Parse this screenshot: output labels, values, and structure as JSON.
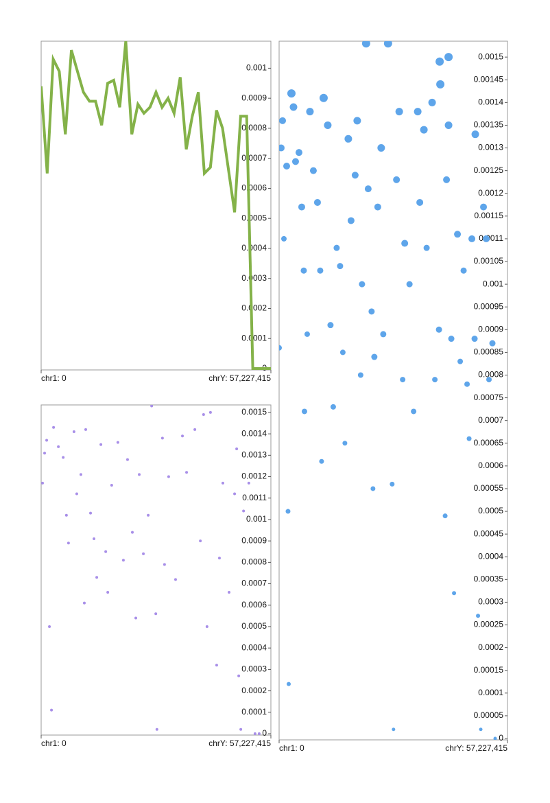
{
  "chart_data": [
    {
      "type": "line",
      "color": "#84b249",
      "values": [
        0.00094,
        0.00065,
        0.00103,
        0.00099,
        0.00078,
        0.00106,
        0.00099,
        0.00092,
        0.00089,
        0.00089,
        0.00081,
        0.00095,
        0.00096,
        0.00087,
        0.00109,
        0.00078,
        0.00088,
        0.00085,
        0.00087,
        0.00092,
        0.00087,
        0.0009,
        0.00085,
        0.00097,
        0.00073,
        0.00084,
        0.00092,
        0.00065,
        0.00067,
        0.00086,
        0.0008,
        0.00066,
        0.00052,
        0.00084,
        0.00084,
        0,
        0,
        0,
        0
      ],
      "xlim": [
        0,
        1
      ],
      "xticks": [
        {
          "value": 0,
          "label": "chr1: 0"
        },
        {
          "value": 1,
          "label": "chrY: 57,227,415"
        }
      ],
      "ylim": [
        0,
        0.00109
      ],
      "yticks": [
        0,
        0.0001,
        0.0002,
        0.0003,
        0.0004,
        0.0005,
        0.0006,
        0.0007,
        0.0008,
        0.0009,
        0.001
      ]
    },
    {
      "type": "scatter",
      "color": "#a88fe8",
      "x": [
        0.006,
        0.015,
        0.024,
        0.036,
        0.045,
        0.054,
        0.075,
        0.096,
        0.11,
        0.119,
        0.143,
        0.155,
        0.173,
        0.188,
        0.194,
        0.215,
        0.23,
        0.242,
        0.26,
        0.281,
        0.29,
        0.307,
        0.334,
        0.358,
        0.376,
        0.397,
        0.412,
        0.427,
        0.445,
        0.466,
        0.481,
        0.499,
        0.504,
        0.528,
        0.537,
        0.555,
        0.585,
        0.615,
        0.633,
        0.669,
        0.693,
        0.707,
        0.722,
        0.737,
        0.764,
        0.776,
        0.791,
        0.818,
        0.842,
        0.851,
        0.86,
        0.869,
        0.881,
        0.904,
        0.931,
        0.949
      ],
      "values": [
        0.00117,
        0.00131,
        0.00137,
        0.0005,
        0.00011,
        0.00143,
        0.00134,
        0.00129,
        0.00102,
        0.00089,
        0.00141,
        0.00112,
        0.00121,
        0.00061,
        0.00142,
        0.00103,
        0.00091,
        0.00073,
        0.00135,
        0.00085,
        0.00066,
        0.00116,
        0.00136,
        0.00081,
        0.00128,
        0.00094,
        0.00054,
        0.00121,
        0.00084,
        0.00102,
        0.00153,
        0.00056,
        2e-05,
        0.00138,
        0.00079,
        0.0012,
        0.00072,
        0.00139,
        0.00122,
        0.00142,
        0.0009,
        0.00149,
        0.0005,
        0.0015,
        0.00032,
        0.00082,
        0.00117,
        0.00066,
        0.00112,
        0.00133,
        0.00027,
        2e-05,
        0.00104,
        0.00117,
        0,
        0
      ],
      "xlim": [
        0,
        1
      ],
      "xticks": [
        {
          "value": 0,
          "label": "chr1: 0"
        },
        {
          "value": 1,
          "label": "chrY: 57,227,415"
        }
      ],
      "ylim": [
        0,
        0.001535
      ],
      "yticks": [
        0,
        0.0001,
        0.0002,
        0.0003,
        0.0004,
        0.0005,
        0.0006,
        0.0007,
        0.0008,
        0.0009,
        0.001,
        0.0011,
        0.0012,
        0.0013,
        0.0014,
        0.0015
      ]
    },
    {
      "type": "scatter",
      "color": "#5ea5ea",
      "x": [
        0,
        0.009,
        0.015,
        0.021,
        0.033,
        0.039,
        0.042,
        0.054,
        0.063,
        0.072,
        0.087,
        0.099,
        0.108,
        0.111,
        0.123,
        0.135,
        0.15,
        0.168,
        0.18,
        0.186,
        0.195,
        0.213,
        0.225,
        0.237,
        0.252,
        0.267,
        0.279,
        0.288,
        0.303,
        0.315,
        0.333,
        0.342,
        0.357,
        0.363,
        0.381,
        0.39,
        0.405,
        0.411,
        0.417,
        0.432,
        0.447,
        0.456,
        0.477,
        0.495,
        0.501,
        0.514,
        0.526,
        0.541,
        0.55,
        0.571,
        0.589,
        0.607,
        0.616,
        0.634,
        0.646,
        0.67,
        0.682,
        0.7,
        0.706,
        0.727,
        0.733,
        0.742,
        0.754,
        0.766,
        0.781,
        0.793,
        0.808,
        0.823,
        0.832,
        0.844,
        0.856,
        0.859,
        0.871,
        0.883,
        0.895,
        0.907,
        0.919,
        0.934,
        0.946,
        0.742,
        0.703
      ],
      "values": [
        0.00086,
        0.0013,
        0.00136,
        0.0011,
        0.00126,
        0.0005,
        0.00012,
        0.00142,
        0.00139,
        0.00127,
        0.00129,
        0.00117,
        0.00103,
        0.00072,
        0.00089,
        0.00138,
        0.00125,
        0.00118,
        0.00103,
        0.00061,
        0.00141,
        0.00135,
        0.00091,
        0.00073,
        0.00108,
        0.00104,
        0.00085,
        0.00065,
        0.00132,
        0.00114,
        0.00124,
        0.00136,
        0.0008,
        0.001,
        0.00153,
        0.00121,
        0.00094,
        0.00055,
        0.00084,
        0.00117,
        0.0013,
        0.00089,
        0.00153,
        0.00056,
        2e-05,
        0.00123,
        0.00138,
        0.00079,
        0.00109,
        0.001,
        0.00072,
        0.00138,
        0.00118,
        0.00134,
        0.00108,
        0.0014,
        0.00079,
        0.0009,
        0.00144,
        0.00049,
        0.00123,
        0.00135,
        0.00088,
        0.00032,
        0.00111,
        0.00083,
        0.00103,
        0.00078,
        0.00066,
        0.0011,
        0.00088,
        0.00133,
        0.00027,
        2e-05,
        0.00117,
        0.0011,
        0.00079,
        0.00087,
        0,
        0.0015,
        0.00149
      ],
      "sizes": [
        4,
        5,
        5,
        4,
        5,
        3.5,
        3,
        6,
        5.5,
        5,
        5,
        5,
        4.5,
        4,
        4,
        5.5,
        5,
        5,
        4.5,
        3.5,
        6,
        5.5,
        4.5,
        4,
        4.5,
        4.5,
        4,
        3.5,
        5.5,
        5,
        5,
        5.5,
        4,
        4.5,
        6,
        5,
        4.5,
        3.5,
        4.5,
        5,
        5.5,
        4.5,
        6,
        3.5,
        2.5,
        5,
        5.5,
        4,
        5,
        4.5,
        4,
        5.5,
        5,
        5.5,
        4.5,
        5.5,
        4,
        4.5,
        6,
        3.5,
        5,
        5.5,
        4.5,
        3,
        5,
        4,
        4.5,
        4,
        3.5,
        5,
        4.5,
        5.5,
        3,
        2.5,
        5,
        5,
        4,
        4.5,
        2.5,
        6,
        6
      ],
      "xlim": [
        0,
        1
      ],
      "xticks": [
        {
          "value": 0,
          "label": "chr1: 0"
        },
        {
          "value": 1,
          "label": "chrY: 57,227,415"
        }
      ],
      "ylim": [
        0,
        0.001535
      ],
      "yticks": [
        0,
        5e-05,
        0.0001,
        0.00015,
        0.0002,
        0.00025,
        0.0003,
        0.00035,
        0.0004,
        0.00045,
        0.0005,
        0.00055,
        0.0006,
        0.00065,
        0.0007,
        0.00075,
        0.0008,
        0.00085,
        0.0009,
        0.00095,
        0.001,
        0.00105,
        0.0011,
        0.00115,
        0.0012,
        0.00125,
        0.0013,
        0.00135,
        0.0014,
        0.00145,
        0.0015
      ]
    }
  ]
}
